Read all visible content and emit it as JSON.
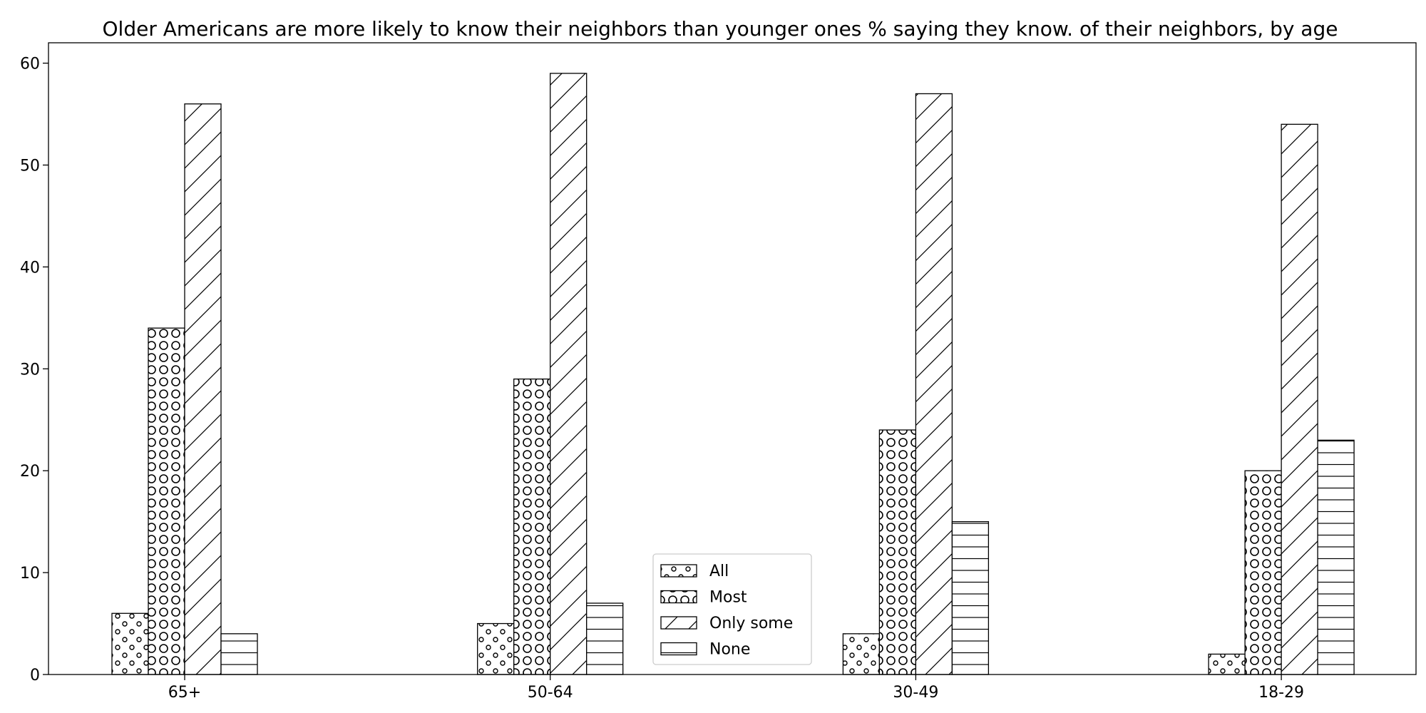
{
  "chart_data": {
    "type": "bar",
    "title": "Older Americans are more likely to know their neighbors than younger ones % saying they know. of their neighbors, by age",
    "xlabel": "",
    "ylabel": "",
    "categories": [
      "65+",
      "50-64",
      "30-49",
      "18-29"
    ],
    "series": [
      {
        "name": "All",
        "values": [
          6,
          5,
          4,
          2
        ],
        "pattern": "dots"
      },
      {
        "name": "Most",
        "values": [
          34,
          29,
          24,
          20
        ],
        "pattern": "circles"
      },
      {
        "name": "Only some",
        "values": [
          56,
          59,
          57,
          54
        ],
        "pattern": "diagonal"
      },
      {
        "name": "None",
        "values": [
          4,
          7,
          15,
          23
        ],
        "pattern": "horizontal"
      }
    ],
    "ylim": [
      0,
      62
    ],
    "yticks": [
      0,
      10,
      20,
      30,
      40,
      50,
      60
    ],
    "grid": false,
    "legend_position": "lower center",
    "colors": {
      "bar_fill": "#ffffff",
      "bar_edge": "#000000",
      "hatch": "#000000"
    }
  }
}
